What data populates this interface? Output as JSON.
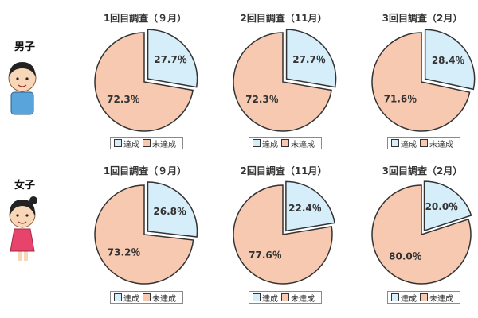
{
  "colors": {
    "achieved": "#d6eef9",
    "not_achieved": "#f7c9b0",
    "stroke": "#333333"
  },
  "rows": [
    {
      "label": "男子",
      "figure": "boy-figure"
    },
    {
      "label": "女子",
      "figure": "girl-figure"
    }
  ],
  "legend": {
    "achieved": "達成",
    "not_achieved": "未達成"
  },
  "chart_data": [
    {
      "type": "pie",
      "title": "1回目調査（９月）",
      "categories": [
        "達成",
        "未達成"
      ],
      "values": [
        27.7,
        72.3
      ],
      "labels": [
        "27.7％",
        "72.3％"
      ]
    },
    {
      "type": "pie",
      "title": "2回目調査（11月）",
      "categories": [
        "達成",
        "未達成"
      ],
      "values": [
        27.7,
        72.3
      ],
      "labels": [
        "27.7％",
        "72.3％"
      ]
    },
    {
      "type": "pie",
      "title": "3回目調査（2月）",
      "categories": [
        "達成",
        "未達成"
      ],
      "values": [
        28.4,
        71.6
      ],
      "labels": [
        "28.4％",
        "71.6％"
      ]
    },
    {
      "type": "pie",
      "title": "1回目調査（９月）",
      "categories": [
        "達成",
        "未達成"
      ],
      "values": [
        26.8,
        73.2
      ],
      "labels": [
        "26.8％",
        "73.2％"
      ]
    },
    {
      "type": "pie",
      "title": "2回目調査（11月）",
      "categories": [
        "達成",
        "未達成"
      ],
      "values": [
        22.4,
        77.6
      ],
      "labels": [
        "22.4％",
        "77.6％"
      ]
    },
    {
      "type": "pie",
      "title": "3回目調査（2月）",
      "categories": [
        "達成",
        "未達成"
      ],
      "values": [
        20.0,
        80.0
      ],
      "labels": [
        "20.0％",
        "80.0％"
      ]
    }
  ]
}
